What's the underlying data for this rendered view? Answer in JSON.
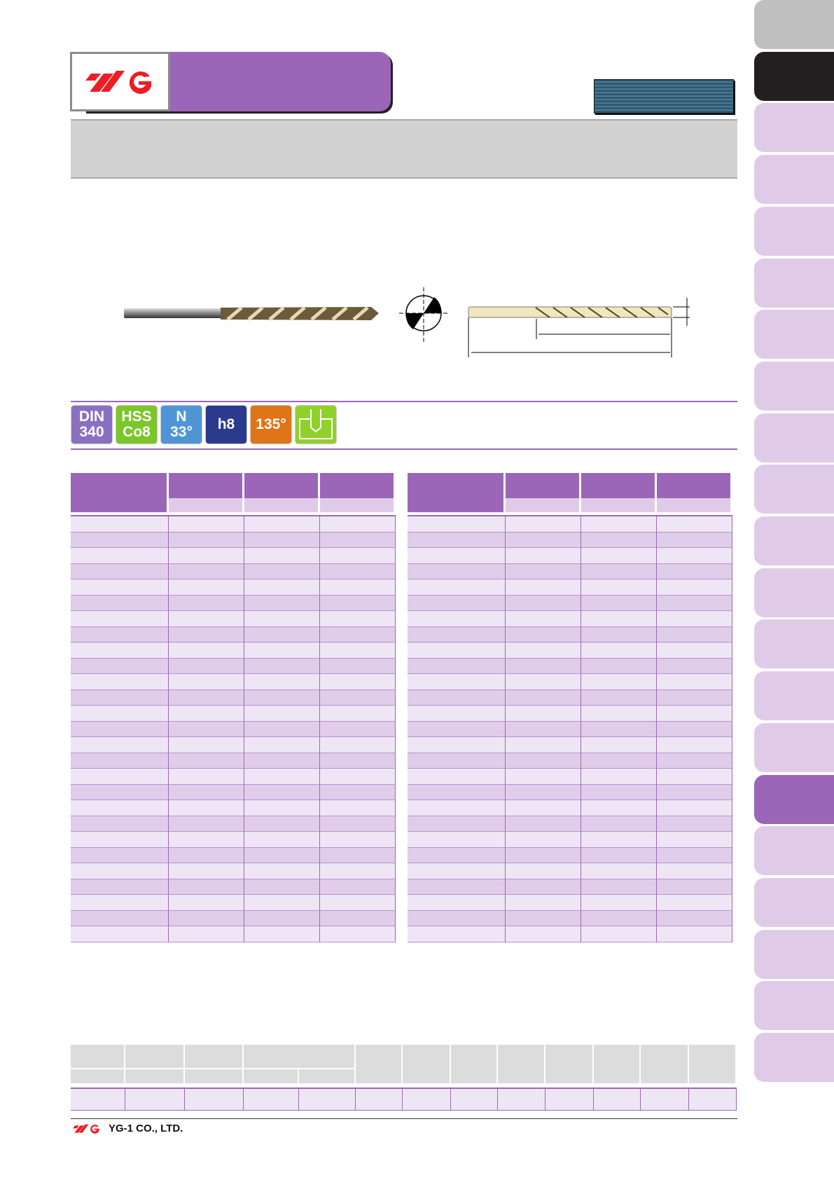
{
  "brand": {
    "logo_text": "YG",
    "company": "YG-1 CO., LTD.",
    "logo_color": "#ee1c25",
    "accent": "#9b66b8",
    "row_light": "#efe6f5",
    "row_dark": "#e0cde9"
  },
  "icons": [
    {
      "name": "din-340-icon",
      "line1": "DIN",
      "line2": "340",
      "color": "#8a70c0"
    },
    {
      "name": "hss-co8-icon",
      "line1": "HSS",
      "line2": "Co8",
      "color": "#7bc62a"
    },
    {
      "name": "helix-angle-33-icon",
      "line1": "N",
      "line2": "33°",
      "color": "#4f95d6"
    },
    {
      "name": "tolerance-h8-icon",
      "line1": "",
      "line2": "h8",
      "color": "#2c3a8e"
    },
    {
      "name": "point-angle-135-icon",
      "line1": "",
      "line2": "135°",
      "color": "#e07418"
    },
    {
      "name": "blind-hole-icon",
      "line1": "",
      "line2": "",
      "color": "#8fd12a"
    }
  ],
  "sidebar": {
    "active_index": 15,
    "tab_count": 21
  },
  "spec_tables": {
    "rows_per_table": 27
  }
}
